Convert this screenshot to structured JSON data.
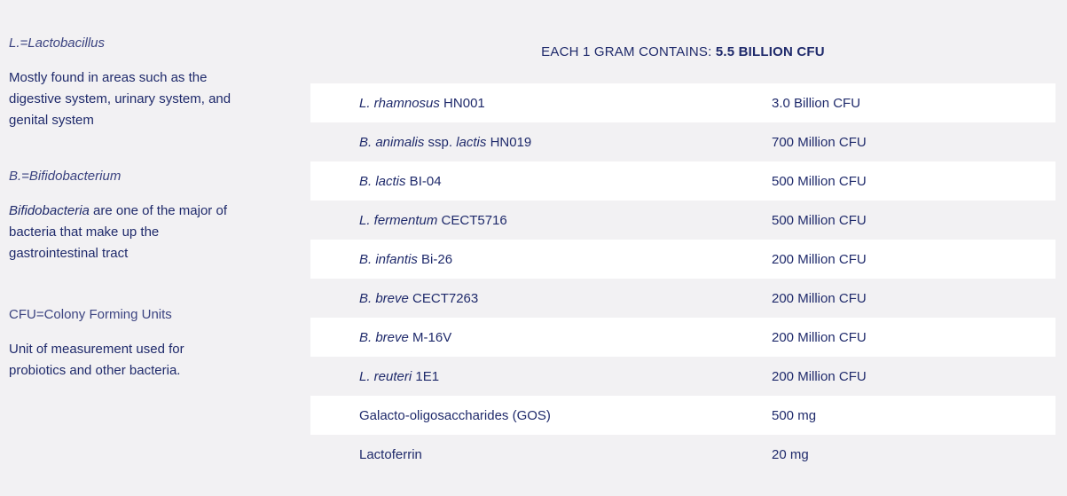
{
  "sidebar": {
    "definitions": [
      {
        "term": "L.=Lactobacillus",
        "description": "Mostly found in areas such as the digestive system, urinary system, and genital system",
        "description_italic_prefix": ""
      },
      {
        "term": "B.=Bifidobacterium",
        "description_italic_prefix": "Bifidobacteria",
        "description": " are one of the major of bacteria that make up the gastrointestinal tract"
      },
      {
        "term": "CFU=Colony Forming Units",
        "description": "Unit of measurement used for probiotics and other bacteria.",
        "description_italic_prefix": ""
      }
    ]
  },
  "table": {
    "heading_prefix": "EACH 1 GRAM CONTAINS: ",
    "heading_strong": "5.5 BILLION CFU",
    "rows": [
      {
        "name_italic": "L. rhamnosus",
        "name_rest": " HN001",
        "amount": "3.0 Billion CFU"
      },
      {
        "name_italic": "B. animalis",
        "name_mid": " ssp. ",
        "name_italic2": "lactis",
        "name_rest": " HN019",
        "amount": "700 Million CFU"
      },
      {
        "name_italic": "B. lactis",
        "name_rest": " BI-04",
        "amount": "500 Million CFU"
      },
      {
        "name_italic": "L. fermentum",
        "name_rest": " CECT5716",
        "amount": "500 Million CFU"
      },
      {
        "name_italic": "B. infantis",
        "name_rest": " Bi-26",
        "amount": "200 Million CFU"
      },
      {
        "name_italic": "B. breve",
        "name_rest": " CECT7263",
        "amount": "200 Million CFU"
      },
      {
        "name_italic": "B. breve",
        "name_rest": " M-16V",
        "amount": "200 Million CFU"
      },
      {
        "name_italic": "L. reuteri",
        "name_rest": " 1E1",
        "amount": "200 Million CFU"
      },
      {
        "name_italic": "",
        "name_rest": "Galacto-oligosaccharides (GOS)",
        "amount": "500 mg"
      },
      {
        "name_italic": "",
        "name_rest": "Lactoferrin",
        "amount": "20 mg"
      }
    ]
  }
}
